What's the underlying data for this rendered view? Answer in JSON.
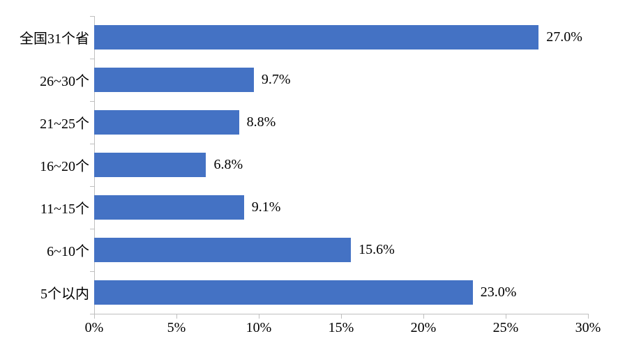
{
  "chart_data": {
    "type": "bar",
    "orientation": "horizontal",
    "title": "",
    "categories": [
      "全国31个省",
      "26~30个",
      "21~25个",
      "16~20个",
      "11~15个",
      "6~10个",
      "5个以内"
    ],
    "values": [
      27.0,
      9.7,
      8.8,
      6.8,
      9.1,
      15.6,
      23.0
    ],
    "data_labels": [
      "27.0%",
      "9.7%",
      "8.8%",
      "6.8%",
      "9.1%",
      "15.6%",
      "23.0%"
    ],
    "x_tick_labels": [
      "0%",
      "5%",
      "10%",
      "15%",
      "20%",
      "25%",
      "30%"
    ],
    "xlim": [
      0,
      30
    ],
    "x_tick_step": 5,
    "grid": false,
    "legend": null,
    "colors": {
      "bar": "#4472C4",
      "axis": "#BFBFBF",
      "text": "#000000",
      "background": "#FFFFFF"
    }
  }
}
